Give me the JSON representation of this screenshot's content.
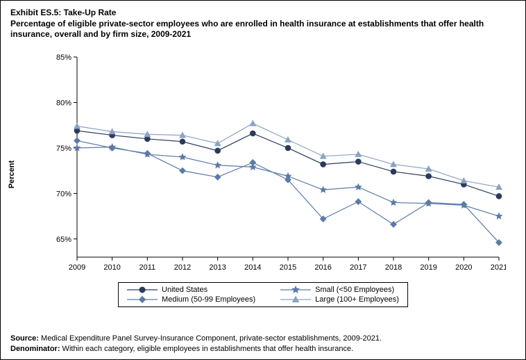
{
  "title": {
    "line1": "Exhibit ES.5: Take-Up Rate",
    "line2": "Percentage of eligible private-sector employees who are enrolled in health insurance at establishments that offer health insurance, overall and by firm size, 2009-2021"
  },
  "chart": {
    "type": "line",
    "ylabel": "Percent",
    "ylim": [
      63,
      85
    ],
    "yticks": [
      65,
      70,
      75,
      80,
      85
    ],
    "ytick_labels": [
      "65%",
      "70%",
      "75%",
      "80%",
      "85%"
    ],
    "xticks": [
      2009,
      2010,
      2011,
      2012,
      2013,
      2014,
      2015,
      2016,
      2017,
      2018,
      2019,
      2020,
      2021
    ],
    "background_color": "#ffffff",
    "axis_color": "#000000",
    "tick_length": 5,
    "series": [
      {
        "name": "United States",
        "label": "United States",
        "color": "#2b3a5c",
        "marker": "circle",
        "marker_size": 4,
        "values": [
          76.9,
          76.4,
          76.0,
          75.7,
          74.7,
          76.6,
          75.0,
          73.2,
          73.5,
          72.4,
          71.9,
          71.0,
          69.7
        ]
      },
      {
        "name": "Small (<50 Employees)",
        "label": "Small (<50 Employees)",
        "color": "#5b7aa8",
        "marker": "star",
        "marker_size": 5,
        "values": [
          75.0,
          75.1,
          74.3,
          74.0,
          73.1,
          72.9,
          71.9,
          70.4,
          70.7,
          69.0,
          68.9,
          68.7,
          67.5
        ]
      },
      {
        "name": "Medium (50-99 Employees)",
        "label": "Medium (50-99 Employees)",
        "color": "#5b7aa8",
        "marker": "diamond",
        "marker_size": 4.5,
        "values": [
          75.8,
          75.0,
          74.4,
          72.5,
          71.8,
          73.4,
          71.5,
          67.2,
          69.1,
          66.6,
          69.0,
          68.8,
          64.6
        ]
      },
      {
        "name": "Large (100+ Employees)",
        "label": "Large (100+ Employees)",
        "color": "#8aa3c2",
        "marker": "triangle",
        "marker_size": 4.5,
        "values": [
          77.4,
          76.8,
          76.5,
          76.4,
          75.5,
          77.7,
          75.9,
          74.1,
          74.3,
          73.2,
          72.7,
          71.4,
          70.7
        ]
      }
    ]
  },
  "legend": {
    "items": [
      "United States",
      "Small (<50 Employees)",
      "Medium (50-99 Employees)",
      "Large (100+ Employees)"
    ]
  },
  "footer": {
    "source_label": "Source:",
    "source_text": " Medical Expenditure Panel Survey-Insurance Component, private-sector establishments, 2009-2021.",
    "denom_label": "Denominator:",
    "denom_text": " Within each category, eligible employees in establishments that offer health insurance."
  }
}
